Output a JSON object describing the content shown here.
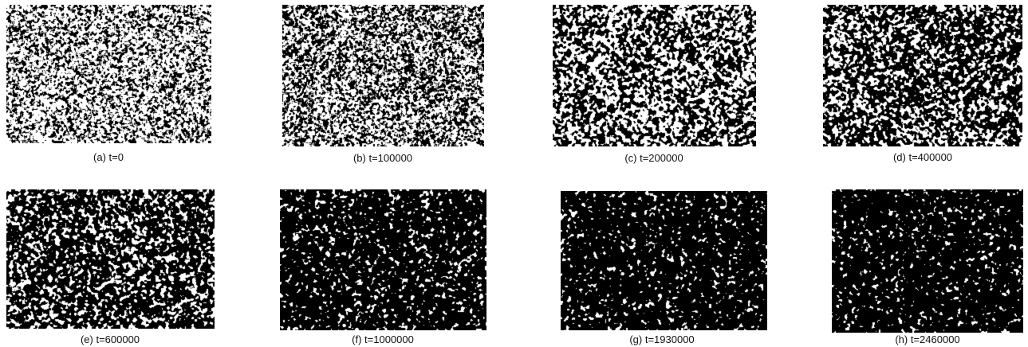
{
  "figure": {
    "panels": [
      {
        "id": "a",
        "caption": "(a) t=0",
        "white_fraction": 0.62,
        "blob": 1.0
      },
      {
        "id": "b",
        "caption": "(b) t=100000",
        "white_fraction": 0.52,
        "blob": 1.3
      },
      {
        "id": "c",
        "caption": "(c) t=200000",
        "white_fraction": 0.47,
        "blob": 1.5
      },
      {
        "id": "d",
        "caption": "(d) t=400000",
        "white_fraction": 0.36,
        "blob": 1.7
      },
      {
        "id": "e",
        "caption": "(e) t=600000",
        "white_fraction": 0.28,
        "blob": 1.9
      },
      {
        "id": "f",
        "caption": "(f) t=1000000",
        "white_fraction": 0.12,
        "blob": 2.2
      },
      {
        "id": "g",
        "caption": "(g) t=1930000",
        "white_fraction": 0.09,
        "blob": 2.3
      },
      {
        "id": "h",
        "caption": "(h) t=2460000",
        "white_fraction": 0.08,
        "blob": 2.4
      }
    ],
    "colors": {
      "foreground": "#ffffff",
      "background": "#000000"
    }
  }
}
